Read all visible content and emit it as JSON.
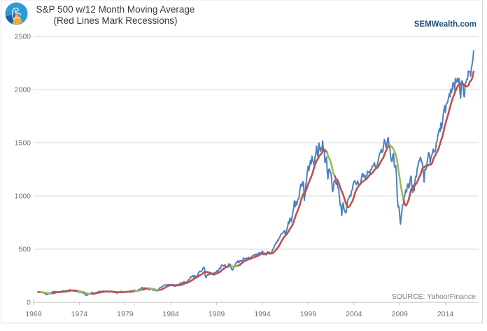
{
  "header": {
    "title": "S&P 500 w/12 Month Moving Average",
    "subtitle": "(Red Lines Mark Recessions)",
    "brand": "SEMWealth.com",
    "logo_icon": "semwealth-logo"
  },
  "footer": {
    "source": "SOURCE: Yahoo!Finance"
  },
  "colors": {
    "sp500_line": "#4F81BD",
    "moving_average_line": "#C0504D",
    "recession_segment": "#9BBB59",
    "gridline": "#D9D9D9",
    "axis_line": "#BFBFBF",
    "brand_text": "#1F4E79",
    "tick_text": "#707070",
    "source_text": "#7F7F7F"
  },
  "chart_data": {
    "type": "line",
    "title": "S&P 500 w/12 Month Moving Average",
    "subtitle": "(Red Lines Mark Recessions)",
    "xlabel": "",
    "ylabel": "",
    "x_ticks": [
      1969,
      1974,
      1979,
      1984,
      1989,
      1994,
      1999,
      2004,
      2009,
      2014
    ],
    "y_ticks": [
      0,
      500,
      1000,
      1500,
      2000,
      2500
    ],
    "xlim": [
      1969,
      2017.6
    ],
    "ylim": [
      0,
      2500
    ],
    "grid": "horizontal-only",
    "legend": "none",
    "recessions": [
      [
        1969.8,
        1971.05
      ],
      [
        1973.85,
        1975.4
      ],
      [
        1980.05,
        1980.9
      ],
      [
        1981.65,
        1982.75
      ],
      [
        1990.55,
        1991.3
      ],
      [
        2001.1,
        2001.95
      ],
      [
        2007.95,
        2009.45
      ]
    ],
    "series": [
      {
        "name": "S&P 500 monthly close",
        "color": "#4F81BD",
        "start_year": 1969.5,
        "step_months": 1,
        "values": [
          97,
          95,
          93,
          95,
          97,
          92,
          90,
          88,
          89,
          82,
          77,
          72,
          78,
          77,
          82,
          83,
          87,
          92,
          95,
          97,
          100,
          104,
          100,
          99,
          96,
          99,
          94,
          94,
          91,
          93,
          102,
          104,
          106,
          108,
          107,
          107,
          106,
          109,
          111,
          109,
          112,
          116,
          118,
          114,
          112,
          111,
          107,
          104,
          108,
          104,
          108,
          103,
          96,
          97,
          97,
          96,
          94,
          92,
          90,
          87,
          86,
          79,
          72,
          64,
          70,
          69,
          77,
          81,
          84,
          87,
          90,
          95,
          89,
          84,
          84,
          89,
          91,
          90,
          96,
          100,
          101,
          103,
          100,
          102,
          104,
          103,
          105,
          102,
          101,
          107,
          102,
          100,
          98,
          99,
          96,
          100,
          99,
          97,
          96,
          92,
          95,
          95,
          90,
          87,
          89,
          96,
          97,
          95,
          100,
          104,
          103,
          93,
          94,
          96,
          100,
          96,
          101,
          102,
          99,
          102,
          103,
          107,
          109,
          102,
          106,
          108,
          114,
          113,
          102,
          106,
          111,
          114,
          121,
          122,
          125,
          127,
          140,
          136,
          130,
          131,
          136,
          133,
          131,
          131,
          130,
          123,
          116,
          122,
          126,
          123,
          120,
          113,
          112,
          116,
          112,
          110,
          107,
          109,
          120,
          132,
          138,
          140,
          145,
          148,
          153,
          162,
          162,
          163,
          162,
          164,
          166,
          164,
          165,
          163,
          163,
          157,
          159,
          157,
          151,
          153,
          151,
          163,
          166,
          166,
          164,
          167,
          180,
          181,
          181,
          180,
          190,
          189,
          192,
          189,
          182,
          190,
          202,
          211,
          212,
          226,
          239,
          236,
          247,
          251,
          236,
          253,
          231,
          244,
          249,
          242,
          274,
          284,
          292,
          288,
          290,
          304,
          319,
          330,
          322,
          252,
          230,
          247,
          257,
          268,
          259,
          261,
          262,
          273,
          272,
          262,
          272,
          279,
          274,
          278,
          297,
          289,
          295,
          310,
          321,
          318,
          346,
          351,
          349,
          340,
          346,
          353,
          329,
          332,
          340,
          331,
          361,
          358,
          356,
          323,
          306,
          304,
          322,
          330,
          344,
          367,
          375,
          375,
          390,
          371,
          380,
          395,
          388,
          392,
          375,
          417,
          409,
          413,
          404,
          415,
          415,
          408,
          424,
          414,
          418,
          419,
          431,
          436,
          439,
          444,
          452,
          440,
          450,
          451,
          448,
          464,
          459,
          468,
          462,
          466,
          482,
          467,
          446,
          451,
          457,
          444,
          458,
          475,
          463,
          472,
          454,
          459,
          470,
          487,
          501,
          514,
          533,
          545,
          562,
          562,
          584,
          582,
          605,
          615,
          636,
          640,
          646,
          654,
          669,
          671,
          639,
          652,
          687,
          705,
          757,
          741,
          786,
          791,
          757,
          801,
          848,
          885,
          954,
          899,
          947,
          915,
          955,
          970,
          980,
          1049,
          1102,
          1112,
          1091,
          1134,
          1121,
          957,
          1017,
          1099,
          1164,
          1229,
          1280,
          1238,
          1286,
          1335,
          1302,
          1373,
          1329,
          1320,
          1283,
          1363,
          1389,
          1469,
          1394,
          1366,
          1499,
          1452,
          1421,
          1455,
          1431,
          1518,
          1437,
          1429,
          1315,
          1320,
          1366,
          1240,
          1160,
          1249,
          1255,
          1224,
          1211,
          1134,
          1041,
          1060,
          1139,
          1148,
          1130,
          1107,
          1147,
          1077,
          1067,
          990,
          911,
          916,
          815,
          886,
          936,
          880,
          856,
          841,
          848,
          917,
          964,
          975,
          990,
          1008,
          996,
          1051,
          1058,
          1112,
          1131,
          1145,
          1126,
          1107,
          1121,
          1141,
          1102,
          1104,
          1114,
          1130,
          1174,
          1212,
          1181,
          1204,
          1181,
          1157,
          1192,
          1191,
          1234,
          1220,
          1229,
          1207,
          1249,
          1248,
          1280,
          1281,
          1295,
          1311,
          1270,
          1270,
          1277,
          1304,
          1336,
          1378,
          1401,
          1418,
          1438,
          1407,
          1421,
          1482,
          1531,
          1503,
          1455,
          1474,
          1527,
          1549,
          1481,
          1468,
          1379,
          1331,
          1323,
          1386,
          1400,
          1280,
          1267,
          1283,
          1165,
          969,
          896,
          903,
          826,
          735,
          798,
          873,
          919,
          926,
          987,
          1020,
          1057,
          1036,
          1096,
          1115,
          1074,
          1104,
          1169,
          1187,
          1089,
          1031,
          1102,
          1049,
          1141,
          1183,
          1181,
          1258,
          1286,
          1327,
          1326,
          1364,
          1345,
          1321,
          1292,
          1219,
          1131,
          1253,
          1247,
          1258,
          1312,
          1366,
          1408,
          1398,
          1310,
          1362,
          1379,
          1407,
          1441,
          1412,
          1416,
          1426,
          1498,
          1515,
          1569,
          1598,
          1631,
          1606,
          1686,
          1633,
          1682,
          1757,
          1806,
          1848,
          1783,
          1859,
          1872,
          1884,
          1924,
          1960,
          1931,
          2003,
          1972,
          2018,
          2068,
          2059,
          1995,
          2105,
          2068,
          2086,
          2107,
          2063,
          2104,
          1972,
          1920,
          2079,
          2080,
          2044,
          1940,
          1932,
          2060,
          2065,
          2097,
          2099,
          2174,
          2171,
          2168,
          2126,
          2199,
          2239,
          2279,
          2364
        ]
      },
      {
        "name": "12-month moving average",
        "color": "#C0504D",
        "recession_color": "#9BBB59",
        "derived_from": "S&P 500 monthly close",
        "window_months": 12
      }
    ]
  }
}
